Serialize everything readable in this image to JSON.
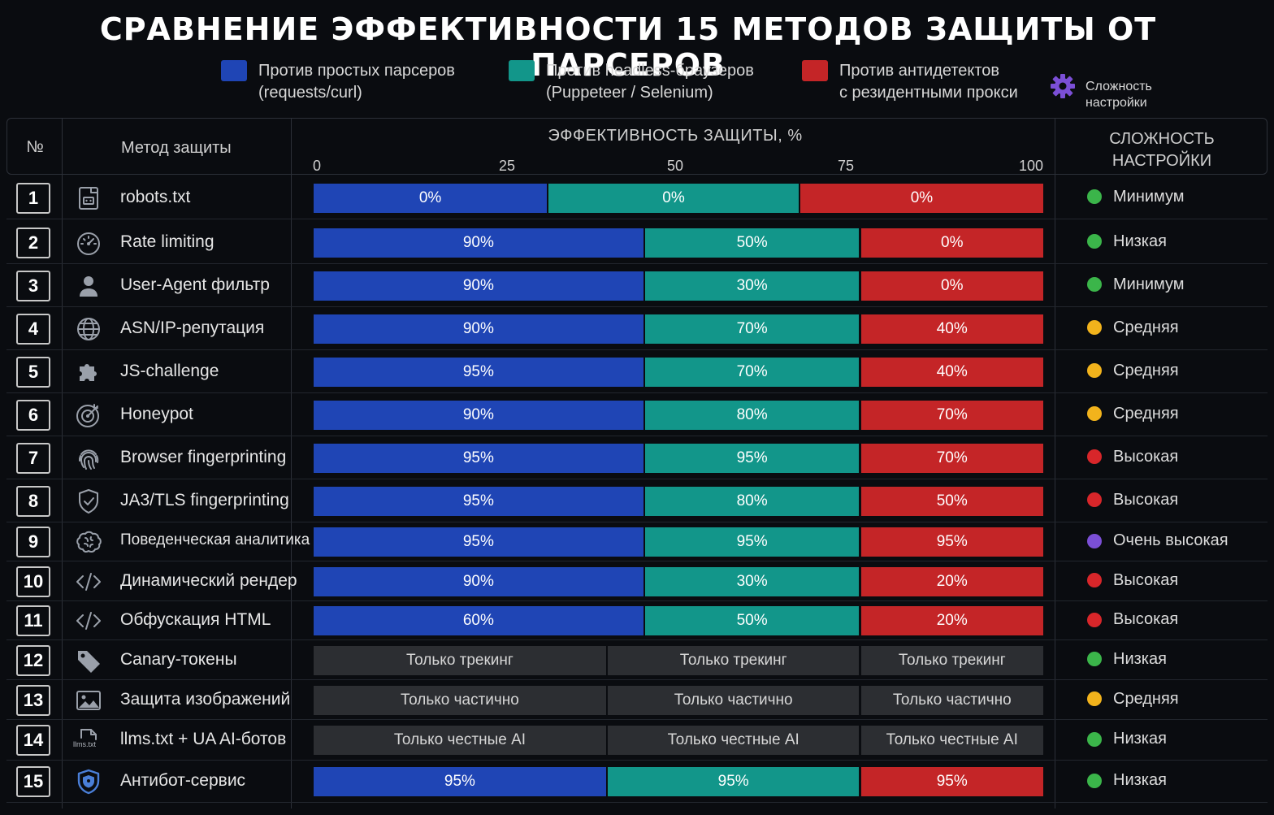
{
  "title": "СРАВНЕНИЕ ЭФФЕКТИВНОСТИ 15 МЕТОДОВ ЗАЩИТЫ ОТ ПАРСЕРОВ",
  "legend": [
    {
      "line1": "Против простых парсеров",
      "line2": "(requests/curl)",
      "color": "#1f45b5"
    },
    {
      "line1": "Против headless-браузеров",
      "line2": "(Puppeteer / Selenium)",
      "color": "#12968a"
    },
    {
      "line1": "Против антидетектов",
      "line2": "с резидентными прокси",
      "color": "#c42527"
    }
  ],
  "legend_complexity": {
    "line1": "Сложность",
    "line2": "настройки",
    "icon": "gear-icon",
    "color": "#7b4fd6"
  },
  "header": {
    "num": "№",
    "method": "Метод защиты",
    "effectiveness": "ЭФФЕКТИВНОСТЬ ЗАЩИТЫ, %",
    "complexity_line1": "СЛОЖНОСТЬ",
    "complexity_line2": "НАСТРОЙКИ",
    "ticks": [
      "0",
      "25",
      "50",
      "75",
      "100"
    ]
  },
  "complexity_colors": {
    "Минимум": "#3bb54a",
    "Низкая": "#3bb54a",
    "Средняя": "#f2b31c",
    "Высокая": "#d8262a",
    "Очень высокая": "#7b4fd6"
  },
  "chart_data": {
    "type": "bar",
    "title": "СРАВНЕНИЕ ЭФФЕКТИВНОСТИ 15 МЕТОДОВ ЗАЩИТЫ ОТ ПАРСЕРОВ",
    "xlabel": "ЭФФЕКТИВНОСТЬ ЗАЩИТЫ, %",
    "xlim": [
      0,
      100
    ],
    "series_names": [
      "Против простых парсеров (requests/curl)",
      "Против headless-браузеров (Puppeteer / Selenium)",
      "Против антидетектов с резидентными прокси"
    ],
    "rows": [
      {
        "num": "1",
        "icon": "robots-icon",
        "method": "robots.txt",
        "labels": [
          "0%",
          "0%",
          "0%"
        ],
        "values": [
          0,
          0,
          0
        ],
        "complexity": "Минимум"
      },
      {
        "num": "2",
        "icon": "speedometer-icon",
        "method": "Rate limiting",
        "labels": [
          "90%",
          "50%",
          "0%"
        ],
        "values": [
          90,
          50,
          0
        ],
        "complexity": "Низкая"
      },
      {
        "num": "3",
        "icon": "user-icon",
        "method": "User-Agent фильтр",
        "labels": [
          "90%",
          "30%",
          "0%"
        ],
        "values": [
          90,
          30,
          0
        ],
        "complexity": "Минимум"
      },
      {
        "num": "4",
        "icon": "globe-icon",
        "method": "ASN/IP-репутация",
        "labels": [
          "90%",
          "70%",
          "40%"
        ],
        "values": [
          90,
          70,
          40
        ],
        "complexity": "Средняя"
      },
      {
        "num": "5",
        "icon": "puzzle-icon",
        "method": "JS-challenge",
        "labels": [
          "95%",
          "70%",
          "40%"
        ],
        "values": [
          95,
          70,
          40
        ],
        "complexity": "Средняя"
      },
      {
        "num": "6",
        "icon": "target-icon",
        "method": "Honeypot",
        "labels": [
          "90%",
          "80%",
          "70%"
        ],
        "values": [
          90,
          80,
          70
        ],
        "complexity": "Средняя"
      },
      {
        "num": "7",
        "icon": "fingerprint-icon",
        "method": "Browser fingerprinting",
        "labels": [
          "95%",
          "95%",
          "70%"
        ],
        "values": [
          95,
          95,
          70
        ],
        "complexity": "Высокая"
      },
      {
        "num": "8",
        "icon": "shield-check-icon",
        "method": "JA3/TLS fingerprinting",
        "labels": [
          "95%",
          "80%",
          "50%"
        ],
        "values": [
          95,
          80,
          50
        ],
        "complexity": "Высокая"
      },
      {
        "num": "9",
        "icon": "brain-icon",
        "method": "Поведенческая аналитика",
        "labels": [
          "95%",
          "95%",
          "95%"
        ],
        "values": [
          95,
          95,
          95
        ],
        "complexity": "Очень высокая"
      },
      {
        "num": "10",
        "icon": "code-icon",
        "method": "Динамический рендер",
        "labels": [
          "90%",
          "30%",
          "20%"
        ],
        "values": [
          90,
          30,
          20
        ],
        "complexity": "Высокая"
      },
      {
        "num": "11",
        "icon": "code-icon",
        "method": "Обфускация HTML",
        "labels": [
          "60%",
          "50%",
          "20%"
        ],
        "values": [
          60,
          50,
          20
        ],
        "complexity": "Высокая"
      },
      {
        "num": "12",
        "icon": "tag-icon",
        "method": "Canary-токены",
        "labels": [
          "Только трекинг",
          "Только трекинг",
          "Только трекинг"
        ],
        "values": null,
        "complexity": "Низкая"
      },
      {
        "num": "13",
        "icon": "image-icon",
        "method": "Защита изображений",
        "labels": [
          "Только частично",
          "Только частично",
          "Только частично"
        ],
        "values": null,
        "complexity": "Средняя"
      },
      {
        "num": "14",
        "icon": "file-icon",
        "icon_text": "llms.txt",
        "method": "llms.txt + UA AI-ботов",
        "labels": [
          "Только честные AI",
          "Только честные AI",
          "Только честные AI"
        ],
        "values": null,
        "complexity": "Низкая"
      },
      {
        "num": "15",
        "icon": "shield-icon",
        "method": "Антибот-сервис",
        "labels": [
          "95%",
          "95%",
          "95%"
        ],
        "values": [
          95,
          95,
          95
        ],
        "complexity": "Низкая"
      }
    ]
  }
}
